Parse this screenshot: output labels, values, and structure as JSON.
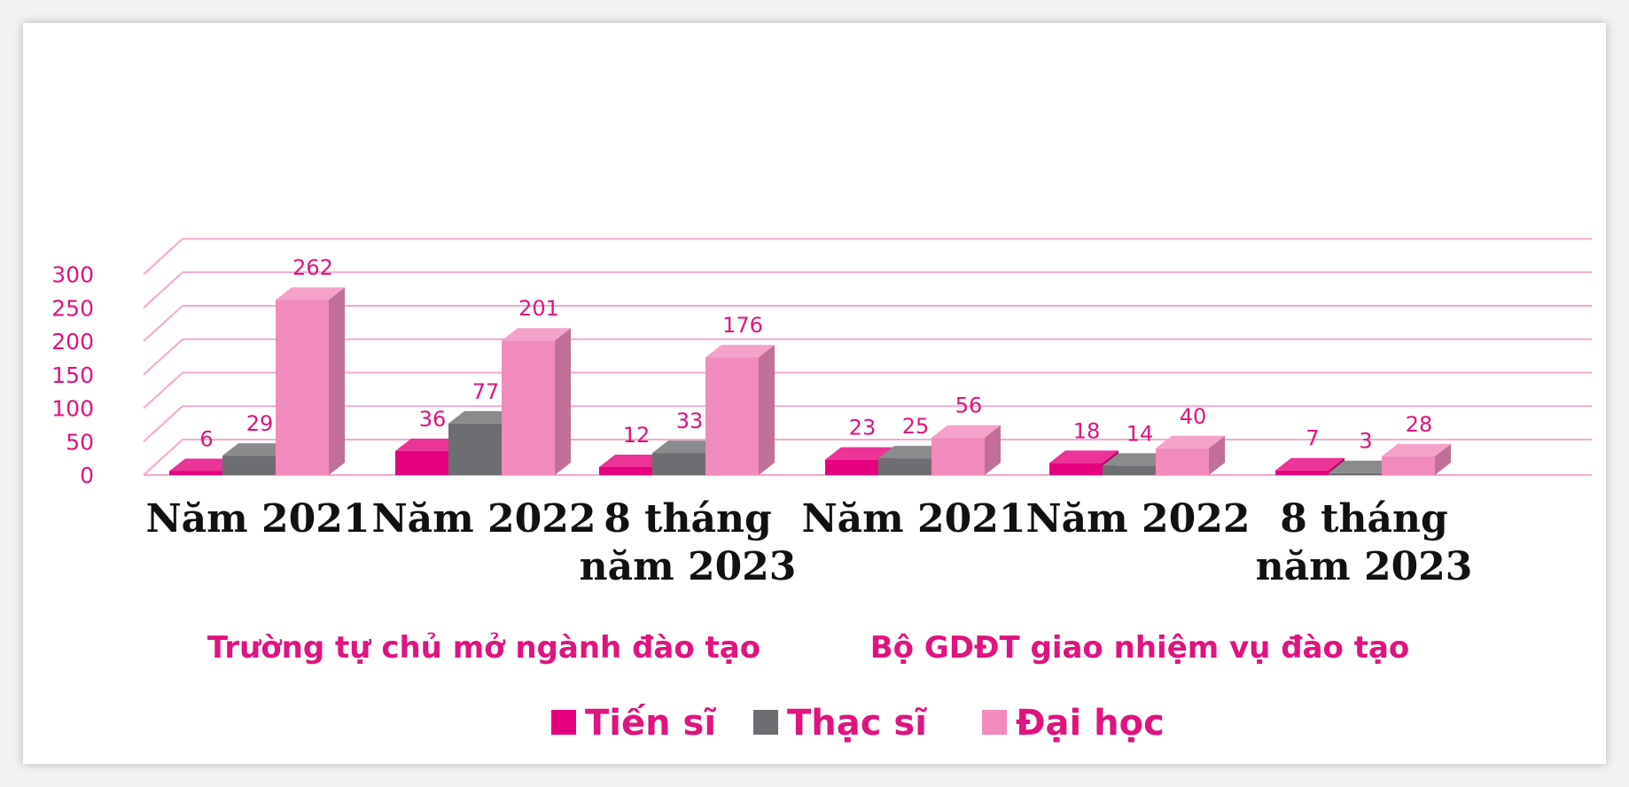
{
  "chart_data": {
    "type": "bar",
    "title": "",
    "xlabel": "",
    "ylabel": "",
    "ylim": [
      0,
      300
    ],
    "yticks": [
      0,
      50,
      100,
      150,
      200,
      250,
      300
    ],
    "grid": true,
    "legend_position": "bottom",
    "categories": [
      [
        "Năm 2021"
      ],
      [
        "Năm 2022"
      ],
      [
        "8 tháng",
        "năm 2023"
      ],
      [
        "Năm 2021"
      ],
      [
        "Năm 2022"
      ],
      [
        "8 tháng",
        "năm 2023"
      ]
    ],
    "groups": [
      {
        "label": "Trường tự chủ mở ngành đào tạo",
        "categories": [
          0,
          1,
          2
        ]
      },
      {
        "label": "Bộ GDĐT giao nhiệm vụ đào tạo",
        "categories": [
          3,
          4,
          5
        ]
      }
    ],
    "series": [
      {
        "name": "Tiến sĩ",
        "color": "#e6007e",
        "values": [
          6,
          36,
          12,
          23,
          18,
          7
        ]
      },
      {
        "name": "Thạc sĩ",
        "color": "#6d6e71",
        "values": [
          29,
          77,
          33,
          25,
          14,
          3
        ]
      },
      {
        "name": "Đại học",
        "color": "#f28bbd",
        "values": [
          262,
          201,
          176,
          56,
          40,
          28
        ]
      }
    ]
  }
}
